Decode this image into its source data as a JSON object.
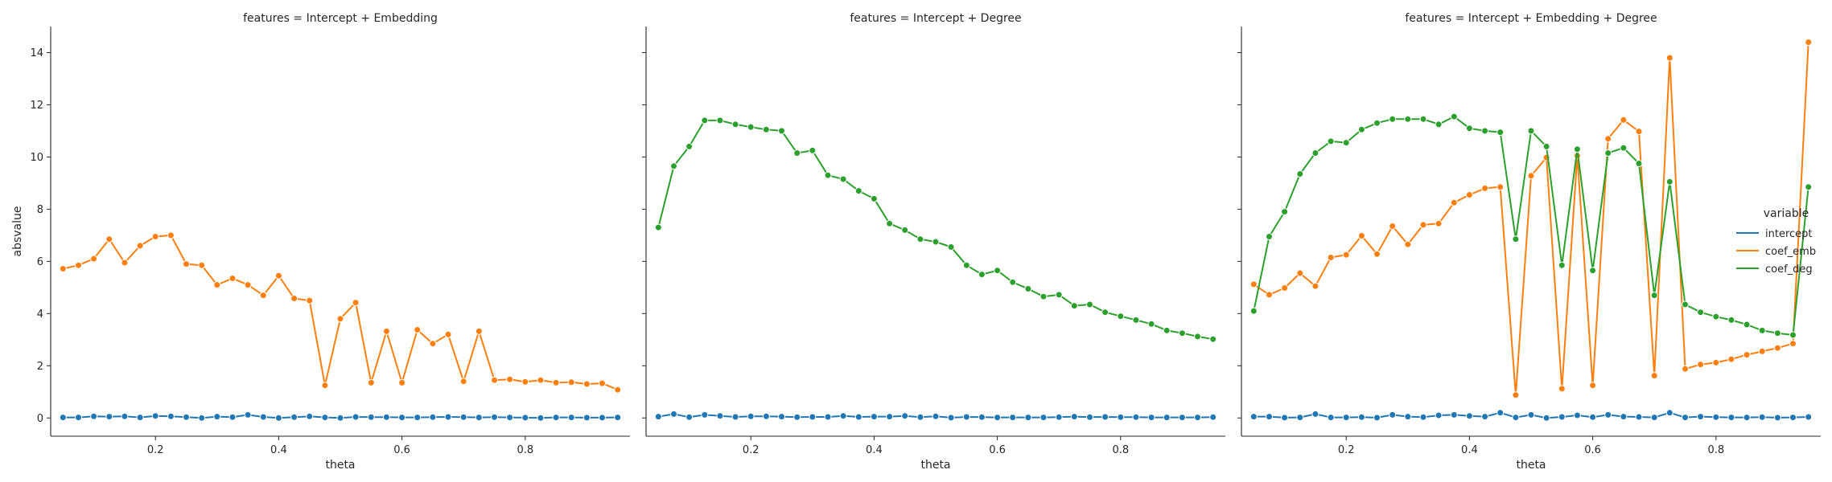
{
  "chart_data": {
    "type": "line",
    "facet_variable": "features",
    "shared_y": true,
    "x": [
      0.05,
      0.075,
      0.1,
      0.125,
      0.15,
      0.175,
      0.2,
      0.225,
      0.25,
      0.275,
      0.3,
      0.325,
      0.35,
      0.375,
      0.4,
      0.425,
      0.45,
      0.475,
      0.5,
      0.525,
      0.55,
      0.575,
      0.6,
      0.625,
      0.65,
      0.675,
      0.7,
      0.725,
      0.75,
      0.775,
      0.8,
      0.825,
      0.85,
      0.875,
      0.9,
      0.925,
      0.95
    ],
    "xlabel": "theta",
    "ylabel": "absvalue",
    "xlim": [
      0.03,
      0.97
    ],
    "ylim": [
      -0.7,
      15.0
    ],
    "xticks": [
      0.2,
      0.4,
      0.6,
      0.8
    ],
    "xtick_labels": [
      "0.2",
      "0.4",
      "0.6",
      "0.8"
    ],
    "yticks": [
      0,
      2,
      4,
      6,
      8,
      10,
      12,
      14
    ],
    "ytick_labels": [
      "0",
      "2",
      "4",
      "6",
      "8",
      "10",
      "12",
      "14"
    ],
    "grid": false,
    "legend": {
      "title": "variable",
      "placement": "right",
      "entries": [
        {
          "label": "intercept",
          "color": "#1f77b4"
        },
        {
          "label": "coef_emb",
          "color": "#ff7f0e"
        },
        {
          "label": "coef_deg",
          "color": "#2ca02c"
        }
      ]
    },
    "panels": [
      {
        "title": "features = Intercept + Embedding",
        "series": [
          {
            "variable": "intercept",
            "color": "#1f77b4",
            "values": [
              0.02,
              0.02,
              0.06,
              0.05,
              0.06,
              0.02,
              0.08,
              0.06,
              0.03,
              0.0,
              0.05,
              0.03,
              0.12,
              0.04,
              0.0,
              0.03,
              0.06,
              0.02,
              0.0,
              0.04,
              0.03,
              0.03,
              0.02,
              0.02,
              0.03,
              0.04,
              0.03,
              0.02,
              0.03,
              0.02,
              0.01,
              0.0,
              0.02,
              0.02,
              0.01,
              0.01,
              0.02
            ]
          },
          {
            "variable": "coef_emb",
            "color": "#ff7f0e",
            "values": [
              5.72,
              5.85,
              6.1,
              6.85,
              5.95,
              6.6,
              6.95,
              7.0,
              5.9,
              5.85,
              5.1,
              5.35,
              5.1,
              4.7,
              5.45,
              4.58,
              4.5,
              1.25,
              3.8,
              4.42,
              1.35,
              3.32,
              1.35,
              3.38,
              2.85,
              3.2,
              1.4,
              3.32,
              1.45,
              1.48,
              1.38,
              1.45,
              1.35,
              1.37,
              1.3,
              1.33,
              1.08
            ]
          }
        ]
      },
      {
        "title": "features = Intercept + Degree",
        "series": [
          {
            "variable": "intercept",
            "color": "#1f77b4",
            "values": [
              0.05,
              0.15,
              0.03,
              0.12,
              0.08,
              0.04,
              0.06,
              0.06,
              0.05,
              0.03,
              0.04,
              0.04,
              0.08,
              0.04,
              0.05,
              0.05,
              0.08,
              0.03,
              0.06,
              0.01,
              0.04,
              0.03,
              0.02,
              0.02,
              0.02,
              0.02,
              0.03,
              0.05,
              0.03,
              0.04,
              0.03,
              0.03,
              0.02,
              0.02,
              0.02,
              0.02,
              0.03
            ]
          },
          {
            "variable": "coef_deg",
            "color": "#2ca02c",
            "values": [
              7.3,
              9.65,
              10.4,
              11.4,
              11.4,
              11.25,
              11.15,
              11.05,
              11.0,
              10.15,
              10.25,
              9.3,
              9.15,
              8.7,
              8.4,
              7.45,
              7.2,
              6.85,
              6.75,
              6.55,
              5.85,
              5.5,
              5.65,
              5.2,
              4.95,
              4.65,
              4.72,
              4.3,
              4.35,
              4.05,
              3.9,
              3.75,
              3.6,
              3.35,
              3.25,
              3.12,
              3.02
            ]
          }
        ]
      },
      {
        "title": "features = Intercept + Embedding + Degree",
        "series": [
          {
            "variable": "intercept",
            "color": "#1f77b4",
            "values": [
              0.05,
              0.05,
              0.01,
              0.02,
              0.15,
              0.02,
              0.02,
              0.03,
              0.01,
              0.12,
              0.05,
              0.03,
              0.1,
              0.12,
              0.08,
              0.05,
              0.2,
              0.02,
              0.12,
              0.0,
              0.04,
              0.1,
              0.03,
              0.12,
              0.05,
              0.04,
              0.02,
              0.2,
              0.02,
              0.05,
              0.03,
              0.02,
              0.02,
              0.03,
              0.01,
              0.02,
              0.04
            ]
          },
          {
            "variable": "coef_emb",
            "color": "#ff7f0e",
            "values": [
              5.12,
              4.72,
              4.98,
              5.55,
              5.05,
              6.15,
              6.25,
              6.98,
              6.28,
              7.35,
              6.65,
              7.4,
              7.45,
              8.25,
              8.55,
              8.8,
              8.85,
              0.88,
              9.28,
              9.98,
              1.12,
              10.05,
              1.25,
              10.7,
              11.42,
              10.98,
              1.62,
              13.8,
              1.88,
              2.05,
              2.12,
              2.25,
              2.42,
              2.55,
              2.68,
              2.85,
              14.4
            ]
          },
          {
            "variable": "coef_deg",
            "color": "#2ca02c",
            "values": [
              4.1,
              6.95,
              7.9,
              9.35,
              10.15,
              10.6,
              10.55,
              11.05,
              11.3,
              11.45,
              11.45,
              11.45,
              11.25,
              11.55,
              11.1,
              11.0,
              10.95,
              6.85,
              11.0,
              10.4,
              5.85,
              10.3,
              5.65,
              10.15,
              10.35,
              9.75,
              4.7,
              9.05,
              4.35,
              4.05,
              3.88,
              3.75,
              3.58,
              3.35,
              3.25,
              3.18,
              8.85
            ]
          }
        ]
      }
    ]
  }
}
